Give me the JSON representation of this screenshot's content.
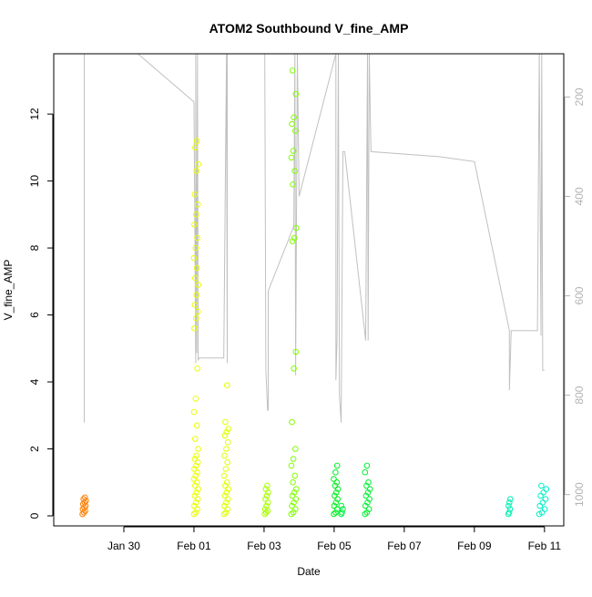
{
  "chart_data": {
    "type": "scatter",
    "title": "ATOM2 Southbound V_fine_AMP",
    "xlabel": "Date",
    "ylabel": "V_fine_AMP",
    "x_tick_labels": [
      "Jan 30",
      "Feb 01",
      "Feb 03",
      "Feb 05",
      "Feb 07",
      "Feb 09",
      "Feb 11"
    ],
    "x_tick_days": [
      30,
      32,
      34,
      36,
      38,
      40,
      42
    ],
    "xlim_days": [
      28.0,
      42.55
    ],
    "y_ticks": [
      0,
      2,
      4,
      6,
      8,
      10,
      12
    ],
    "ylim": [
      -0.3,
      13.8
    ],
    "y2_ticks": [
      200,
      400,
      600,
      800,
      1000
    ],
    "y2lim": [
      1063,
      113
    ],
    "y2_reversed": true,
    "grid": false,
    "legend": "none",
    "colors": {
      "axis": "#000000",
      "secondary_axis": "#b3b3b3",
      "secondary_line": "#c0c0c0"
    },
    "clusters": [
      {
        "day": 28.87,
        "width": 0.1,
        "color": "#ff8000",
        "values": [
          0.05,
          0.1,
          0.15,
          0.2,
          0.25,
          0.3,
          0.35,
          0.4,
          0.45,
          0.5,
          0.55
        ]
      },
      {
        "day": 32.06,
        "width": 0.12,
        "color": "#eaff00",
        "values": [
          0.05,
          0.1,
          0.2,
          0.3,
          0.4,
          0.5,
          0.6,
          0.7,
          0.8,
          0.9,
          1.0,
          1.1,
          1.2,
          1.3,
          1.4,
          1.5,
          1.6,
          1.7,
          1.8,
          2.0,
          2.3,
          2.7,
          3.1,
          3.5,
          4.4,
          5.6,
          5.9,
          6.1,
          6.3,
          6.6,
          6.9,
          7.1,
          7.4,
          7.7,
          8.0,
          8.3,
          8.7,
          9.0,
          9.3,
          9.6,
          10.3,
          10.5,
          11.0,
          11.2
        ]
      },
      {
        "day": 32.92,
        "width": 0.12,
        "color": "#e0ff00",
        "values": [
          0.05,
          0.1,
          0.2,
          0.3,
          0.4,
          0.5,
          0.6,
          0.7,
          0.8,
          0.9,
          1.0,
          1.2,
          1.4,
          1.6,
          1.8,
          2.0,
          2.2,
          2.4,
          2.5,
          2.6,
          2.8,
          3.9
        ]
      },
      {
        "day": 34.07,
        "width": 0.1,
        "color": "#a8ff00",
        "values": [
          0.05,
          0.1,
          0.15,
          0.2,
          0.3,
          0.4,
          0.5,
          0.6,
          0.7,
          0.8,
          0.9
        ]
      },
      {
        "day": 34.85,
        "width": 0.14,
        "color": "#80ff00",
        "values": [
          0.05,
          0.1,
          0.2,
          0.3,
          0.4,
          0.5,
          0.6,
          0.7,
          0.8,
          1.0,
          1.2,
          1.5,
          1.7,
          2.0,
          2.8,
          4.4,
          4.9,
          8.2,
          8.3,
          8.6,
          9.9,
          10.3,
          10.7,
          10.9,
          11.5,
          11.7,
          11.9,
          12.6,
          13.3
        ]
      },
      {
        "day": 36.05,
        "width": 0.12,
        "color": "#00f020",
        "values": [
          0.05,
          0.1,
          0.2,
          0.3,
          0.4,
          0.5,
          0.6,
          0.7,
          0.8,
          0.9,
          1.0,
          1.1,
          1.3,
          1.5
        ]
      },
      {
        "day": 36.23,
        "width": 0.06,
        "color": "#00f040",
        "values": [
          0.05,
          0.1,
          0.2,
          0.3
        ]
      },
      {
        "day": 36.95,
        "width": 0.14,
        "color": "#00f030",
        "values": [
          0.05,
          0.1,
          0.2,
          0.3,
          0.4,
          0.5,
          0.6,
          0.7,
          0.8,
          0.9,
          1.0,
          1.3,
          1.5
        ]
      },
      {
        "day": 41.0,
        "width": 0.06,
        "color": "#00f0b0",
        "values": [
          0.05,
          0.1,
          0.2,
          0.3,
          0.4,
          0.5
        ]
      },
      {
        "day": 41.95,
        "width": 0.2,
        "color": "#00f0c8",
        "values": [
          0.05,
          0.1,
          0.2,
          0.3,
          0.4,
          0.5,
          0.6,
          0.7,
          0.8,
          0.9
        ]
      }
    ],
    "secondary_series": [
      [
        28.87,
        240
      ],
      [
        28.87,
        113
      ],
      [
        28.87,
        855
      ],
      [
        28.87,
        113
      ],
      [
        30.4,
        113
      ],
      [
        32.0,
        210
      ],
      [
        32.05,
        735
      ],
      [
        32.05,
        113
      ],
      [
        32.08,
        715
      ],
      [
        32.1,
        113
      ],
      [
        32.12,
        730
      ],
      [
        32.15,
        725
      ],
      [
        32.85,
        725
      ],
      [
        32.9,
        330
      ],
      [
        32.93,
        113
      ],
      [
        32.95,
        735
      ],
      [
        32.95,
        113
      ],
      [
        34.02,
        113
      ],
      [
        34.05,
        750
      ],
      [
        34.1,
        830
      ],
      [
        34.12,
        830
      ],
      [
        34.12,
        590
      ],
      [
        34.85,
        460
      ],
      [
        34.88,
        113
      ],
      [
        34.9,
        760
      ],
      [
        34.95,
        113
      ],
      [
        35.0,
        400
      ],
      [
        36.05,
        113
      ],
      [
        36.05,
        770
      ],
      [
        36.08,
        690
      ],
      [
        36.08,
        700
      ],
      [
        36.12,
        113
      ],
      [
        36.15,
        800
      ],
      [
        36.2,
        855
      ],
      [
        36.25,
        310
      ],
      [
        36.3,
        310
      ],
      [
        36.9,
        690
      ],
      [
        36.95,
        113
      ],
      [
        36.97,
        690
      ],
      [
        37.0,
        113
      ],
      [
        37.05,
        310
      ],
      [
        39.0,
        320
      ],
      [
        40.0,
        330
      ],
      [
        41.0,
        670
      ],
      [
        41.0,
        790
      ],
      [
        41.05,
        670
      ],
      [
        41.8,
        670
      ],
      [
        41.85,
        113
      ],
      [
        41.9,
        680
      ],
      [
        41.92,
        113
      ],
      [
        41.95,
        750
      ],
      [
        42.0,
        750
      ]
    ]
  }
}
